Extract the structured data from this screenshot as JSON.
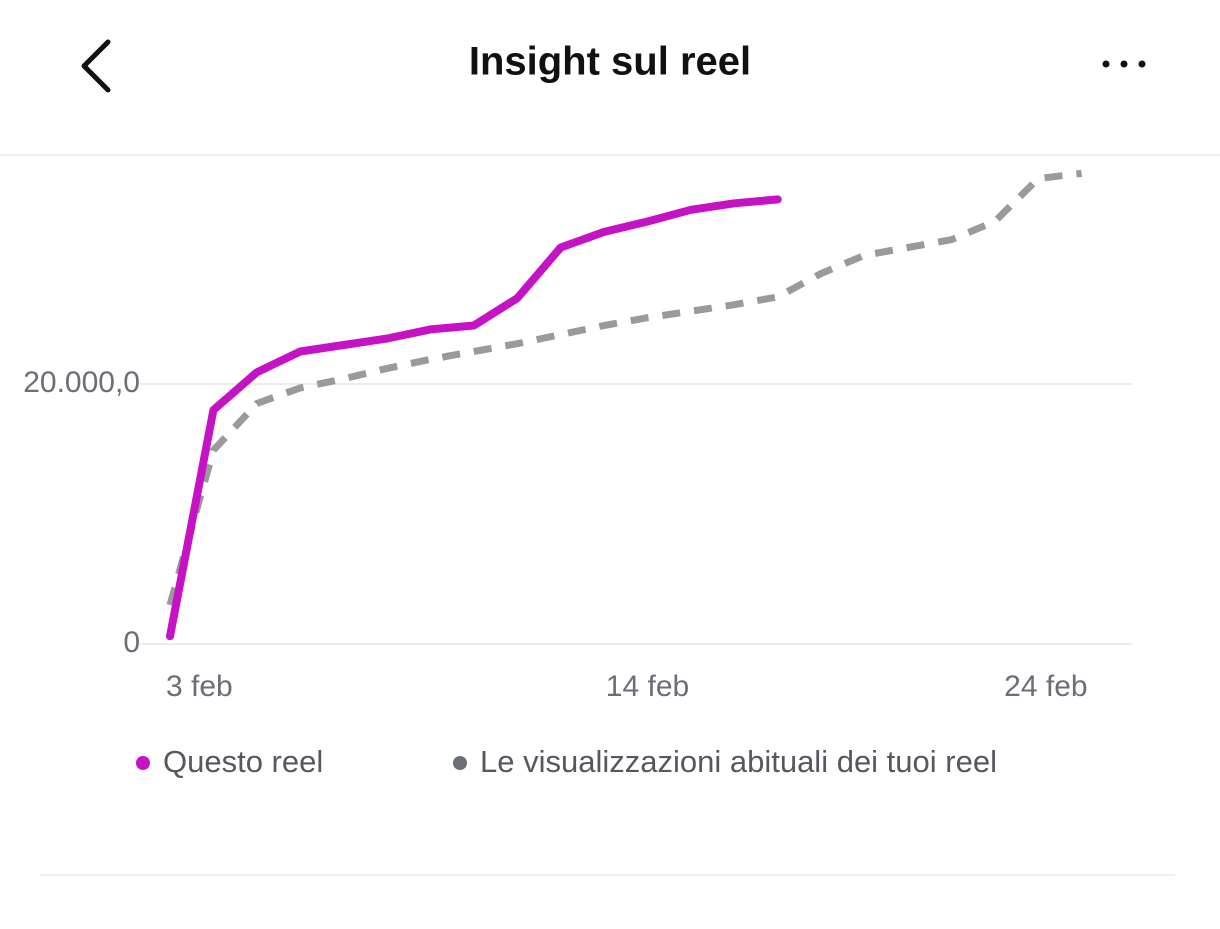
{
  "header": {
    "title": "Insight sul reel"
  },
  "chart_data": {
    "type": "line",
    "x": [
      3,
      4,
      5,
      6,
      7,
      8,
      9,
      10,
      11,
      12,
      13,
      14,
      15,
      16,
      17,
      18,
      19,
      20,
      21,
      22,
      23,
      24
    ],
    "series": [
      {
        "name": "Questo reel",
        "color": "#c412c4",
        "dashed": false,
        "values": [
          600,
          18000,
          20900,
          22500,
          23000,
          23500,
          24200,
          24500,
          26600,
          30500,
          31700,
          32500,
          33400,
          33900,
          34200,
          null,
          null,
          null,
          null,
          null,
          null,
          null
        ]
      },
      {
        "name": "Le visualizzazioni abituali dei tuoi reel",
        "color": "#9a9a9a",
        "dashed": true,
        "values": [
          3000,
          14900,
          18500,
          19700,
          20400,
          21200,
          21900,
          22500,
          23100,
          23800,
          24500,
          25100,
          25600,
          26100,
          26700,
          28500,
          29900,
          30500,
          31100,
          32500,
          35800,
          36200
        ]
      }
    ],
    "xlim": [
      3,
      25
    ],
    "xticks": [
      {
        "value": 3,
        "label": "3 feb"
      },
      {
        "value": 14,
        "label": "14 feb"
      },
      {
        "value": 24,
        "label": "24 feb"
      }
    ],
    "ylim": [
      0,
      38000
    ],
    "yticks": [
      0,
      {
        "value": 20000,
        "label": "20.000,0"
      }
    ],
    "grid": true
  }
}
